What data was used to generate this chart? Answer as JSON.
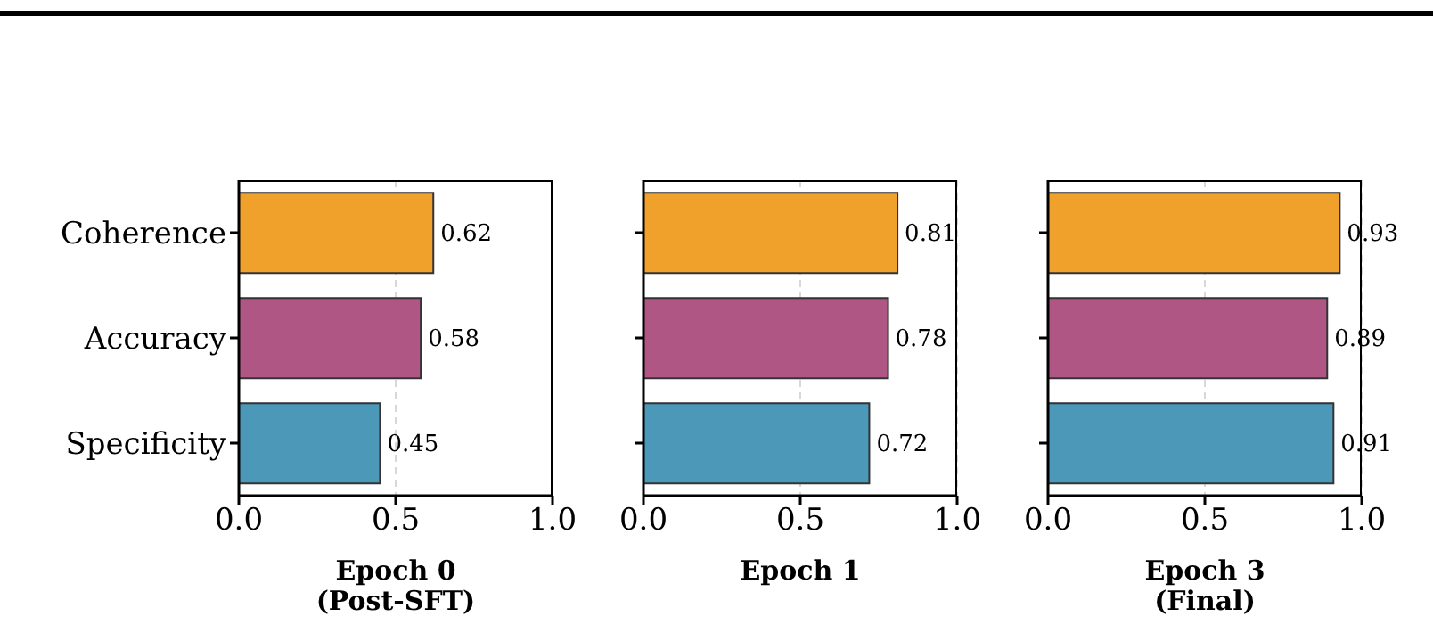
{
  "chart_data": [
    {
      "type": "bar",
      "orientation": "horizontal",
      "categories": [
        "Coherence",
        "Accuracy",
        "Specificity"
      ],
      "values": [
        0.62,
        0.58,
        0.45
      ],
      "colors": [
        "#f0a12c",
        "#b05685",
        "#4b98b8"
      ],
      "xlim": [
        0,
        1
      ],
      "xticks": [
        {
          "value": 0,
          "label": "0.0"
        },
        {
          "value": 0.5,
          "label": "0.5"
        },
        {
          "value": 1,
          "label": "1.0"
        }
      ],
      "xlabel": "Epoch 0\n(Post-SFT)",
      "grid": "x",
      "data_labels": true
    },
    {
      "type": "bar",
      "orientation": "horizontal",
      "categories": [
        null,
        null,
        null
      ],
      "values": [
        0.81,
        0.78,
        0.72
      ],
      "colors": [
        "#f0a12c",
        "#b05685",
        "#4b98b8"
      ],
      "xlim": [
        0,
        1
      ],
      "xticks": [
        {
          "value": 0,
          "label": "0.0"
        },
        {
          "value": 0.5,
          "label": "0.5"
        },
        {
          "value": 1,
          "label": "1.0"
        }
      ],
      "xlabel": "Epoch 1",
      "grid": "x",
      "data_labels": true,
      "tick_labels": "x"
    },
    {
      "type": "bar",
      "orientation": "horizontal",
      "categories": [
        null,
        null,
        null
      ],
      "values": [
        0.93,
        0.89,
        0.91
      ],
      "colors": [
        "#f0a12c",
        "#b05685",
        "#4b98b8"
      ],
      "xlim": [
        0,
        1
      ],
      "xticks": [
        {
          "value": 0,
          "label": "0.0"
        },
        {
          "value": 0.5,
          "label": "0.5"
        },
        {
          "value": 1,
          "label": "1.0"
        }
      ],
      "xlabel": "Epoch 3\n(Final)",
      "grid": "x",
      "data_labels": true,
      "tick_labels": "x"
    }
  ]
}
